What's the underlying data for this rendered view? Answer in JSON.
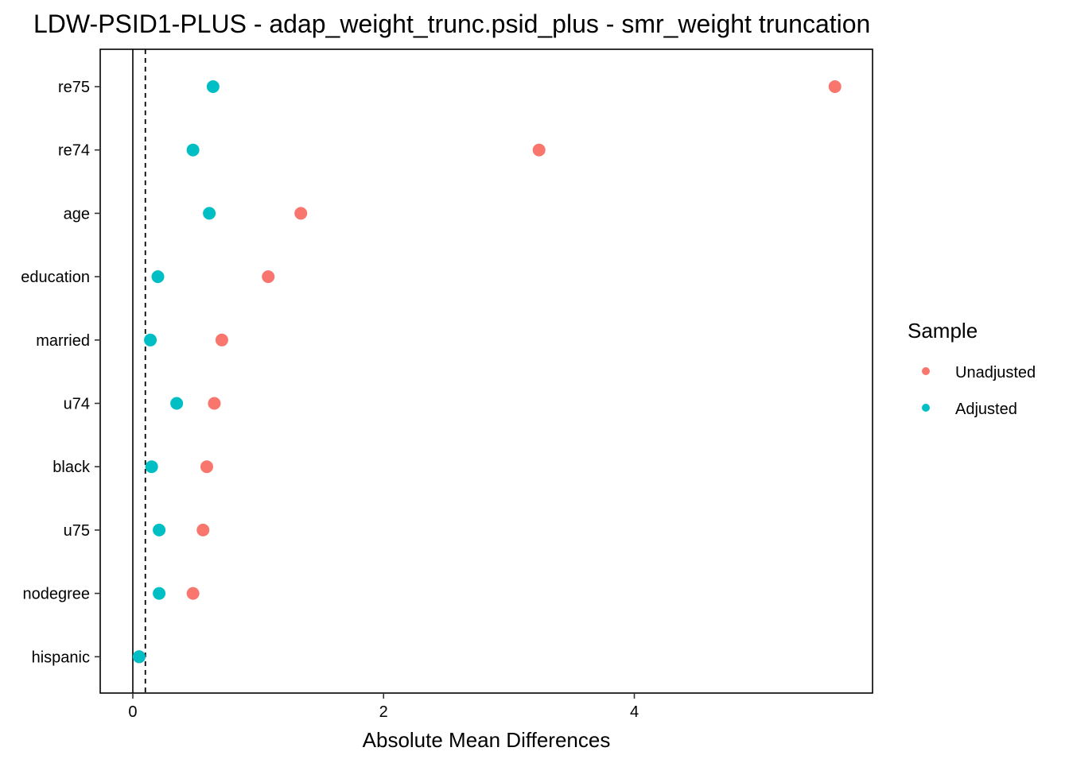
{
  "chart_data": {
    "type": "scatter",
    "title": "LDW-PSID1-PLUS - adap_weight_trunc.psid_plus - smr_weight truncation",
    "xlabel": "Absolute Mean Differences",
    "ylabel": "",
    "xlim": [
      -0.26,
      5.9
    ],
    "x_ticks": [
      0,
      2,
      4
    ],
    "x_tick_labels": [
      "0",
      "2",
      "4"
    ],
    "reference_lines": [
      {
        "x": 0,
        "style": "solid"
      },
      {
        "x": 0.1,
        "style": "dashed"
      }
    ],
    "grid": false,
    "categories": [
      "re75",
      "re74",
      "age",
      "education",
      "married",
      "u74",
      "black",
      "u75",
      "nodegree",
      "hispanic"
    ],
    "series": [
      {
        "name": "Unadjusted",
        "color": "#F8766D",
        "values": [
          5.6,
          3.24,
          1.34,
          1.08,
          0.71,
          0.65,
          0.59,
          0.56,
          0.48,
          0.05
        ]
      },
      {
        "name": "Adjusted",
        "color": "#00BFC4",
        "values": [
          0.64,
          0.48,
          0.61,
          0.2,
          0.14,
          0.35,
          0.15,
          0.21,
          0.21,
          0.05
        ]
      }
    ],
    "legend": {
      "title": "Sample",
      "position": "right"
    }
  }
}
